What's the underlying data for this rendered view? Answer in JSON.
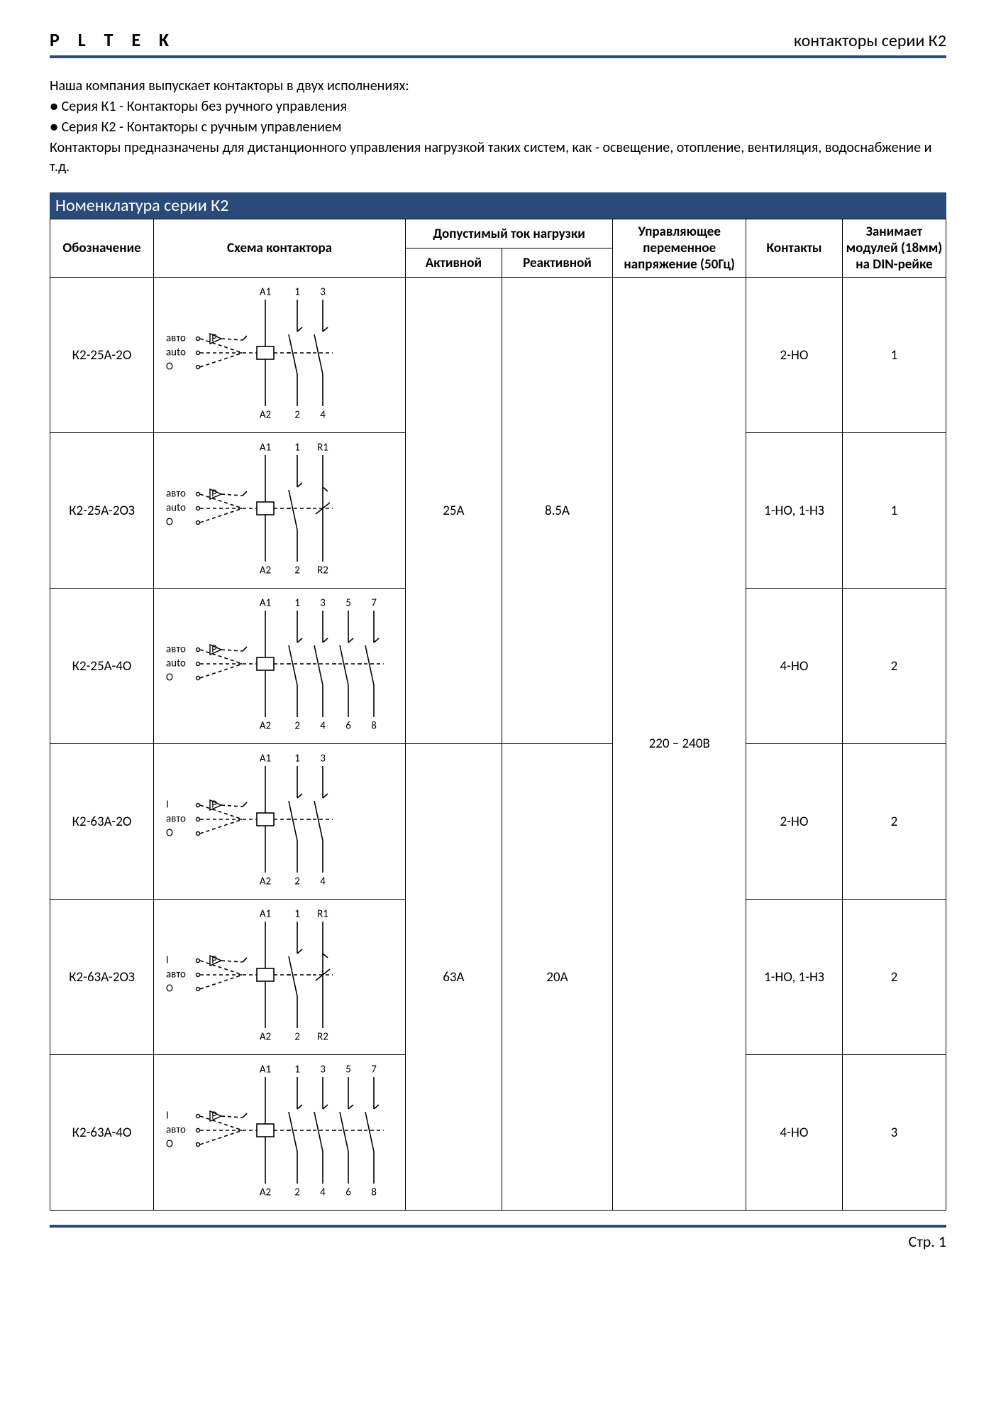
{
  "colors": {
    "accent": "#2a4a7a",
    "border": "#000000",
    "text": "#000000",
    "bg": "#ffffff"
  },
  "header": {
    "brand": "P L T E K",
    "series": "контакторы серии К2"
  },
  "intro": {
    "line1": "Наша компания выпускает контакторы в двух исполнениях:",
    "bullet1": "● Серия К1 - Контакторы без ручного управления",
    "bullet2": "● Серия К2 - Контакторы с ручным управлением",
    "line2": "Контакторы предназначены для дистанционного управления нагрузкой таких систем, как - освещение, отопление, вентиляция, водоснабжение и т.д."
  },
  "section_title": "Номенклатура серии К2",
  "table": {
    "headers": {
      "designation": "Обозначение",
      "schematic": "Схема контактора",
      "load_current": "Допустимый ток нагрузки",
      "active": "Активной",
      "reactive": "Реактивной",
      "voltage": "Управляющее переменное напряжение (50Гц)",
      "contacts": "Контакты",
      "modules": "Занимает модулей (18мм) на DIN-рейке"
    },
    "voltage_value": "220 – 240В",
    "groups": [
      {
        "active": "25А",
        "reactive": "8.5А"
      },
      {
        "active": "63А",
        "reactive": "20А"
      }
    ],
    "rows": [
      {
        "designation": "К2-25А-2О",
        "contacts": "2-НО",
        "modules": "1"
      },
      {
        "designation": "К2-25А-2ОЗ",
        "contacts": "1-НО, 1-НЗ",
        "modules": "1"
      },
      {
        "designation": "К2-25А-4О",
        "contacts": "4-НО",
        "modules": "2"
      },
      {
        "designation": "К2-63А-2О",
        "contacts": "2-НО",
        "modules": "2"
      },
      {
        "designation": "К2-63А-2ОЗ",
        "contacts": "1-НО, 1-НЗ",
        "modules": "2"
      },
      {
        "designation": "К2-63А-4О",
        "contacts": "4-НО",
        "modules": "3"
      }
    ]
  },
  "schematic": {
    "switch_labels_A": {
      "l1": "авто",
      "l2": "auto",
      "l3": "O"
    },
    "switch_labels_B": {
      "l1": "I",
      "l2": "авто",
      "l3": "O"
    },
    "coil_top": "A1",
    "coil_bot": "A2",
    "p_label": "P",
    "contacts_2NO": {
      "top": [
        "1",
        "3"
      ],
      "bot": [
        "2",
        "4"
      ]
    },
    "contacts_1NO1NC": {
      "top": [
        "1",
        "R1"
      ],
      "bot": [
        "2",
        "R2"
      ]
    },
    "contacts_4NO": {
      "top": [
        "1",
        "3",
        "5",
        "7"
      ],
      "bot": [
        "2",
        "4",
        "6",
        "8"
      ]
    },
    "style": {
      "line_color": "#000000",
      "line_width": 1.6,
      "dash": "5,4",
      "font_size": 15
    }
  },
  "footer": {
    "page": "Стр. 1"
  }
}
